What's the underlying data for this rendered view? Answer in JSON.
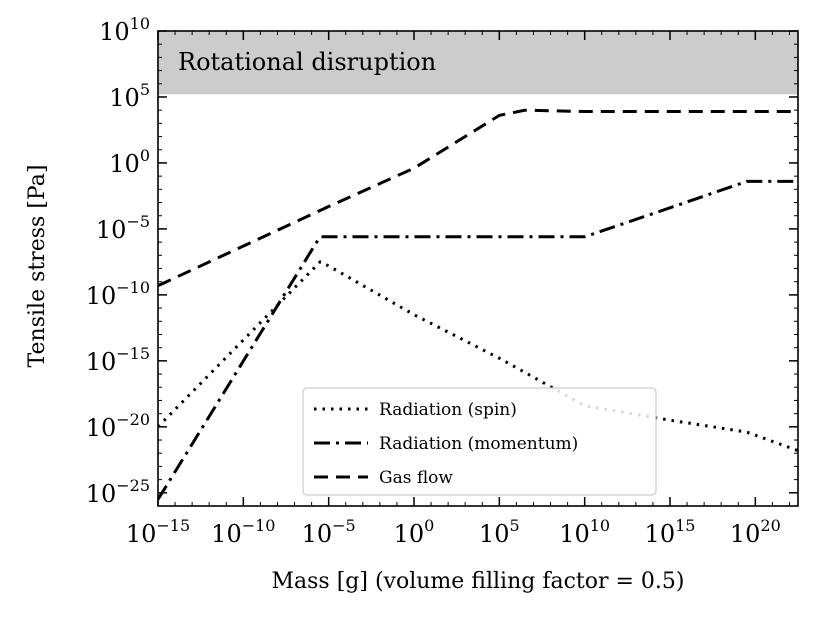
{
  "chart_data": {
    "type": "line",
    "title": "",
    "xlabel": "Mass [g] (volume filling factor = 0.5)",
    "ylabel": "Tensile stress [Pa]",
    "x_scale": "log",
    "y_scale": "log",
    "xlim_log10": [
      -15,
      22.5
    ],
    "ylim_log10": [
      -26,
      10
    ],
    "x_ticks": [
      {
        "base": "10",
        "exp": "−15",
        "log": -15
      },
      {
        "base": "10",
        "exp": "−10",
        "log": -10
      },
      {
        "base": "10",
        "exp": "−5",
        "log": -5
      },
      {
        "base": "10",
        "exp": "0",
        "log": 0
      },
      {
        "base": "10",
        "exp": "5",
        "log": 5
      },
      {
        "base": "10",
        "exp": "10",
        "log": 10
      },
      {
        "base": "10",
        "exp": "15",
        "log": 15
      },
      {
        "base": "10",
        "exp": "20",
        "log": 20
      }
    ],
    "y_ticks": [
      {
        "base": "10",
        "exp": "10",
        "log": 10
      },
      {
        "base": "10",
        "exp": "5",
        "log": 5
      },
      {
        "base": "10",
        "exp": "0",
        "log": 0
      },
      {
        "base": "10",
        "exp": "−5",
        "log": -5
      },
      {
        "base": "10",
        "exp": "−10",
        "log": -10
      },
      {
        "base": "10",
        "exp": "−15",
        "log": -15
      },
      {
        "base": "10",
        "exp": "−20",
        "log": -20
      },
      {
        "base": "10",
        "exp": "−25",
        "log": -25
      }
    ],
    "region": {
      "label": "Rotational disruption",
      "y_from_log10": 5.2,
      "y_to_log10": 10,
      "color": "#cccccc"
    },
    "series": [
      {
        "name": "Radiation (spin)",
        "style": "dotted",
        "points_log10": [
          [
            -15,
            -20
          ],
          [
            -5.5,
            -7.5
          ],
          [
            -5,
            -7.8
          ],
          [
            0,
            -11.5
          ],
          [
            5,
            -14.8
          ],
          [
            10,
            -18.4
          ],
          [
            15,
            -19.5
          ],
          [
            19.5,
            -20.4
          ],
          [
            22.5,
            -21.8
          ]
        ]
      },
      {
        "name": "Radiation (momentum)",
        "style": "dashdot",
        "points_log10": [
          [
            -15,
            -25.5
          ],
          [
            -5.8,
            -6.2
          ],
          [
            -5.5,
            -5.6
          ],
          [
            0,
            -5.6
          ],
          [
            5,
            -5.6
          ],
          [
            10,
            -5.6
          ],
          [
            15,
            -3.4
          ],
          [
            19.5,
            -1.4
          ],
          [
            22.5,
            -1.4
          ]
        ]
      },
      {
        "name": "Gas flow",
        "style": "dashed",
        "points_log10": [
          [
            -15,
            -9.3
          ],
          [
            -5,
            -3.3
          ],
          [
            0,
            -0.4
          ],
          [
            5,
            3.6
          ],
          [
            6.5,
            4.0
          ],
          [
            10,
            3.9
          ],
          [
            15,
            3.9
          ],
          [
            22.5,
            3.9
          ]
        ]
      }
    ],
    "legend": {
      "position": "lower-center",
      "entries": [
        "Radiation (spin)",
        "Radiation (momentum)",
        "Gas flow"
      ]
    }
  }
}
